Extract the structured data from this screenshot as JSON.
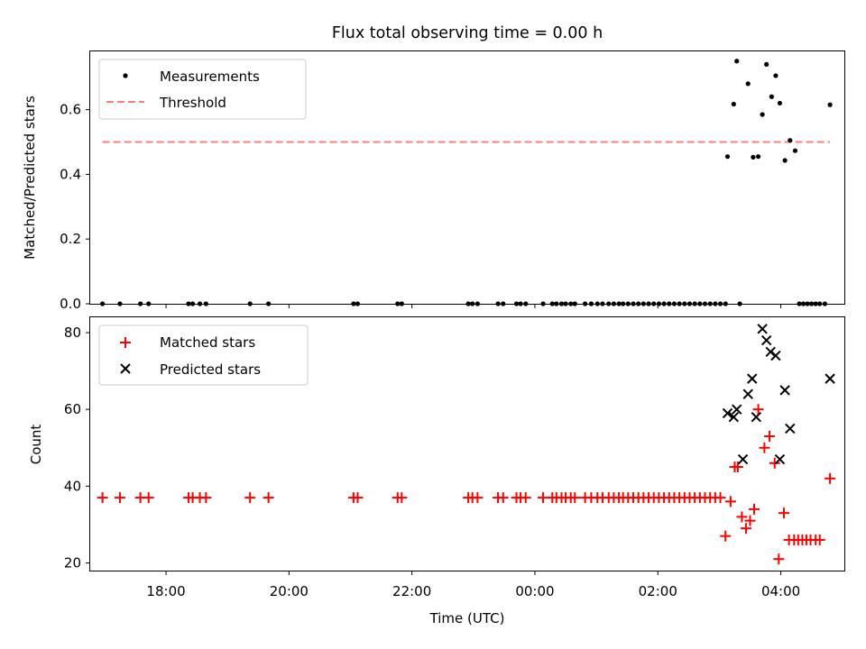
{
  "chart_data": [
    {
      "type": "scatter",
      "title": "Flux total observing time = 0.00 h",
      "ylabel": "Matched/Predicted stars",
      "xlabel": "",
      "ylim": [
        0,
        0.78
      ],
      "yticks": [
        "0.0",
        "0.2",
        "0.4",
        "0.6"
      ],
      "legend_position": "top-left",
      "series": [
        {
          "name": "Measurements",
          "marker": "dot",
          "color": "#000000",
          "points": [
            [
              "16:58",
              0.0
            ],
            [
              "17:15",
              0.0
            ],
            [
              "17:35",
              0.0
            ],
            [
              "17:43",
              0.0
            ],
            [
              "18:22",
              0.0
            ],
            [
              "18:26",
              0.0
            ],
            [
              "18:33",
              0.0
            ],
            [
              "18:39",
              0.0
            ],
            [
              "19:22",
              0.0
            ],
            [
              "19:40",
              0.0
            ],
            [
              "21:03",
              0.0
            ],
            [
              "21:07",
              0.0
            ],
            [
              "21:46",
              0.0
            ],
            [
              "21:50",
              0.0
            ],
            [
              "22:55",
              0.0
            ],
            [
              "22:59",
              0.0
            ],
            [
              "23:04",
              0.0
            ],
            [
              "23:24",
              0.0
            ],
            [
              "23:29",
              0.0
            ],
            [
              "23:42",
              0.0
            ],
            [
              "23:46",
              0.0
            ],
            [
              "23:51",
              0.0
            ],
            [
              "00:08",
              0.0
            ],
            [
              "00:17",
              0.0
            ],
            [
              "00:21",
              0.0
            ],
            [
              "00:26",
              0.0
            ],
            [
              "00:30",
              0.0
            ],
            [
              "00:35",
              0.0
            ],
            [
              "00:39",
              0.0
            ],
            [
              "00:49",
              0.0
            ],
            [
              "00:55",
              0.0
            ],
            [
              "01:01",
              0.0
            ],
            [
              "01:06",
              0.0
            ],
            [
              "01:12",
              0.0
            ],
            [
              "01:17",
              0.0
            ],
            [
              "01:22",
              0.0
            ],
            [
              "01:26",
              0.0
            ],
            [
              "01:31",
              0.0
            ],
            [
              "01:36",
              0.0
            ],
            [
              "01:41",
              0.0
            ],
            [
              "01:46",
              0.0
            ],
            [
              "01:51",
              0.0
            ],
            [
              "01:56",
              0.0
            ],
            [
              "02:01",
              0.0
            ],
            [
              "02:06",
              0.0
            ],
            [
              "02:11",
              0.0
            ],
            [
              "02:16",
              0.0
            ],
            [
              "02:21",
              0.0
            ],
            [
              "02:26",
              0.0
            ],
            [
              "02:31",
              0.0
            ],
            [
              "02:36",
              0.0
            ],
            [
              "02:41",
              0.0
            ],
            [
              "02:46",
              0.0
            ],
            [
              "02:51",
              0.0
            ],
            [
              "02:56",
              0.0
            ],
            [
              "03:01",
              0.0
            ],
            [
              "03:06",
              0.0
            ],
            [
              "03:20",
              0.0
            ],
            [
              "03:08",
              0.455
            ],
            [
              "03:14",
              0.617
            ],
            [
              "03:17",
              0.75
            ],
            [
              "03:28",
              0.68
            ],
            [
              "03:33",
              0.453
            ],
            [
              "03:38",
              0.455
            ],
            [
              "03:42",
              0.585
            ],
            [
              "03:46",
              0.74
            ],
            [
              "03:51",
              0.64
            ],
            [
              "03:55",
              0.705
            ],
            [
              "03:59",
              0.62
            ],
            [
              "04:04",
              0.443
            ],
            [
              "04:09",
              0.505
            ],
            [
              "04:14",
              0.473
            ],
            [
              "04:18",
              0.0
            ],
            [
              "04:22",
              0.0
            ],
            [
              "04:26",
              0.0
            ],
            [
              "04:30",
              0.0
            ],
            [
              "04:34",
              0.0
            ],
            [
              "04:38",
              0.0
            ],
            [
              "04:43",
              0.0
            ],
            [
              "04:48",
              0.615
            ]
          ]
        },
        {
          "name": "Threshold",
          "marker": "dashed-line",
          "color": "#ff7f7f",
          "points": [
            [
              "16:58",
              0.5
            ],
            [
              "04:48",
              0.5
            ]
          ]
        }
      ]
    },
    {
      "type": "scatter",
      "title": "",
      "ylabel": "Count",
      "xlabel": "Time (UTC)",
      "ylim": [
        18,
        84
      ],
      "yticks": [
        "20",
        "40",
        "60",
        "80"
      ],
      "xtick_labels": [
        "18:00",
        "20:00",
        "22:00",
        "00:00",
        "02:00",
        "04:00"
      ],
      "legend_position": "top-left",
      "series": [
        {
          "name": "Matched stars",
          "marker": "plus",
          "color": "#ff0000",
          "points": [
            [
              "16:58",
              37
            ],
            [
              "17:15",
              37
            ],
            [
              "17:35",
              37
            ],
            [
              "17:43",
              37
            ],
            [
              "18:22",
              37
            ],
            [
              "18:26",
              37
            ],
            [
              "18:33",
              37
            ],
            [
              "18:39",
              37
            ],
            [
              "19:22",
              37
            ],
            [
              "19:40",
              37
            ],
            [
              "21:03",
              37
            ],
            [
              "21:07",
              37
            ],
            [
              "21:46",
              37
            ],
            [
              "21:50",
              37
            ],
            [
              "22:55",
              37
            ],
            [
              "22:59",
              37
            ],
            [
              "23:04",
              37
            ],
            [
              "23:24",
              37
            ],
            [
              "23:29",
              37
            ],
            [
              "23:42",
              37
            ],
            [
              "23:46",
              37
            ],
            [
              "23:51",
              37
            ],
            [
              "00:08",
              37
            ],
            [
              "00:17",
              37
            ],
            [
              "00:21",
              37
            ],
            [
              "00:26",
              37
            ],
            [
              "00:30",
              37
            ],
            [
              "00:35",
              37
            ],
            [
              "00:39",
              37
            ],
            [
              "00:49",
              37
            ],
            [
              "00:55",
              37
            ],
            [
              "01:01",
              37
            ],
            [
              "01:06",
              37
            ],
            [
              "01:12",
              37
            ],
            [
              "01:17",
              37
            ],
            [
              "01:22",
              37
            ],
            [
              "01:26",
              37
            ],
            [
              "01:31",
              37
            ],
            [
              "01:36",
              37
            ],
            [
              "01:41",
              37
            ],
            [
              "01:46",
              37
            ],
            [
              "01:51",
              37
            ],
            [
              "01:56",
              37
            ],
            [
              "02:01",
              37
            ],
            [
              "02:06",
              37
            ],
            [
              "02:11",
              37
            ],
            [
              "02:16",
              37
            ],
            [
              "02:21",
              37
            ],
            [
              "02:26",
              37
            ],
            [
              "02:31",
              37
            ],
            [
              "02:36",
              37
            ],
            [
              "02:41",
              37
            ],
            [
              "02:46",
              37
            ],
            [
              "02:51",
              37
            ],
            [
              "02:56",
              37
            ],
            [
              "03:01",
              37
            ],
            [
              "03:06",
              27
            ],
            [
              "03:11",
              36
            ],
            [
              "03:15",
              45
            ],
            [
              "03:18",
              45
            ],
            [
              "03:22",
              32
            ],
            [
              "03:26",
              29
            ],
            [
              "03:30",
              31
            ],
            [
              "03:34",
              34
            ],
            [
              "03:38",
              60
            ],
            [
              "03:44",
              50
            ],
            [
              "03:49",
              53
            ],
            [
              "03:54",
              46
            ],
            [
              "03:58",
              21
            ],
            [
              "04:03",
              33
            ],
            [
              "04:08",
              26
            ],
            [
              "04:13",
              26
            ],
            [
              "04:17",
              26
            ],
            [
              "04:21",
              26
            ],
            [
              "04:25",
              26
            ],
            [
              "04:29",
              26
            ],
            [
              "04:34",
              26
            ],
            [
              "04:38",
              26
            ],
            [
              "04:48",
              42
            ]
          ]
        },
        {
          "name": "Predicted stars",
          "marker": "x",
          "color": "#000000",
          "points": [
            [
              "03:08",
              59
            ],
            [
              "03:14",
              58
            ],
            [
              "03:17",
              60
            ],
            [
              "03:23",
              47
            ],
            [
              "03:28",
              64
            ],
            [
              "03:32",
              68
            ],
            [
              "03:36",
              58
            ],
            [
              "03:42",
              81
            ],
            [
              "03:46",
              78
            ],
            [
              "03:50",
              75
            ],
            [
              "03:55",
              74
            ],
            [
              "03:59",
              47
            ],
            [
              "04:04",
              65
            ],
            [
              "04:09",
              55
            ],
            [
              "04:48",
              68
            ]
          ]
        }
      ]
    }
  ]
}
